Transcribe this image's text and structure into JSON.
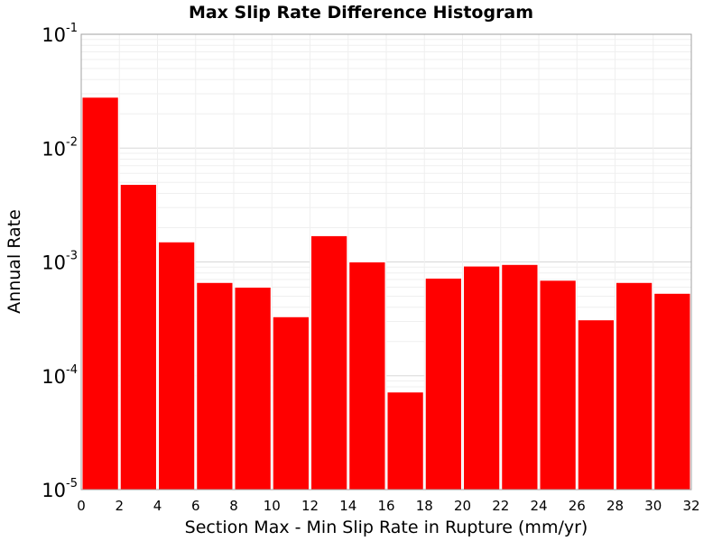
{
  "chart_data": {
    "type": "bar",
    "title": "Max Slip Rate Difference Histogram",
    "xlabel": "Section Max - Min Slip Rate in Rupture (mm/yr)",
    "ylabel": "Annual Rate",
    "bin_width": 2,
    "x": [
      1,
      3,
      5,
      7,
      9,
      11,
      13,
      15,
      17,
      19,
      21,
      23,
      25,
      27,
      29,
      31
    ],
    "values": [
      0.028,
      0.0048,
      0.0015,
      0.00066,
      0.0006,
      0.00033,
      0.0017,
      0.001,
      7.2e-05,
      0.00072,
      0.00092,
      0.00095,
      0.00069,
      0.00031,
      0.00066,
      0.00053
    ],
    "xlim": [
      0,
      32
    ],
    "ylim": [
      1e-05,
      0.1
    ],
    "yscale": "log",
    "x_ticks": [
      "0",
      "2",
      "4",
      "6",
      "8",
      "10",
      "12",
      "14",
      "16",
      "18",
      "20",
      "22",
      "24",
      "26",
      "28",
      "30",
      "32"
    ],
    "y_ticks": [
      {
        "value": 1e-05,
        "base": "10",
        "exp": "-5"
      },
      {
        "value": 0.0001,
        "base": "10",
        "exp": "-4"
      },
      {
        "value": 0.001,
        "base": "10",
        "exp": "-3"
      },
      {
        "value": 0.01,
        "base": "10",
        "exp": "-2"
      },
      {
        "value": 0.1,
        "base": "10",
        "exp": "-1"
      }
    ],
    "grid": true,
    "colors": {
      "bar": "#ff0000",
      "bar_edge": "#ffffff",
      "grid_major": "#d8d8d8",
      "grid_minor": "#efefef",
      "axis": "#a0a0a0"
    }
  }
}
